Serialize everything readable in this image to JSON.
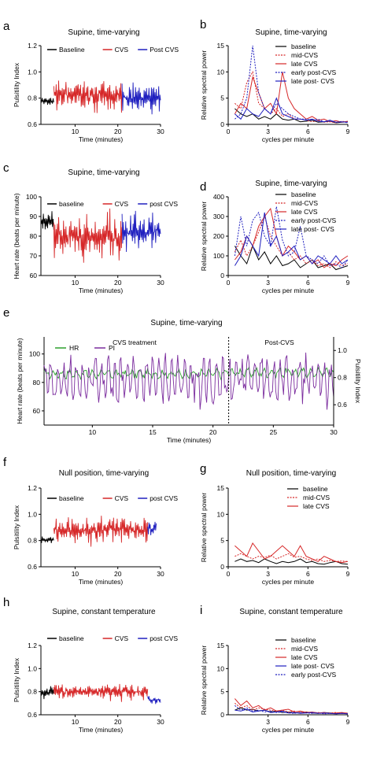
{
  "chart_data": [
    {
      "panel": "a",
      "type": "line",
      "title": "Supine, time-varying",
      "xlabel": "Time (minutes)",
      "ylabel": "Pulsitility Index",
      "xlim": [
        2,
        30
      ],
      "ylim": [
        0.6,
        1.2
      ],
      "xticks": [
        10,
        20,
        30
      ],
      "yticks": [
        0.6,
        0.8,
        1.0,
        1.2
      ],
      "legend": [
        {
          "name": "Baseline",
          "color": "#000000"
        },
        {
          "name": "CVS",
          "color": "#d62728"
        },
        {
          "name": "Post CVS",
          "color": "#1f1fbf"
        }
      ],
      "series": [
        {
          "name": "Baseline",
          "color": "#000000",
          "x": [
            2,
            3,
            4,
            5
          ],
          "base": 0.78,
          "amp": 0.04
        },
        {
          "name": "CVS",
          "color": "#d62728",
          "x": [
            5,
            21
          ],
          "base": 0.82,
          "amp": 0.1
        },
        {
          "name": "Post CVS",
          "color": "#1f1fbf",
          "x": [
            21,
            30
          ],
          "base": 0.8,
          "amp": 0.1
        }
      ]
    },
    {
      "panel": "b",
      "type": "line",
      "title": "Supine, time-varying",
      "xlabel": "cycles per minute",
      "ylabel": "Relative spectral power",
      "xlim": [
        0,
        9
      ],
      "ylim": [
        0,
        15
      ],
      "xticks": [
        0,
        3,
        6,
        9
      ],
      "yticks": [
        0,
        5,
        10,
        15
      ],
      "series": [
        {
          "name": "baseline",
          "color": "#000000",
          "dash": false,
          "y": [
            3,
            2,
            1.5,
            2,
            1,
            1.5,
            1,
            2,
            1,
            0.8,
            1,
            0.5,
            0.6,
            0.8,
            0.4,
            0.5,
            0.6,
            0.3,
            0.4,
            0.5
          ]
        },
        {
          "name": "mid-CVS",
          "color": "#d62728",
          "dash": true,
          "y": [
            4,
            3,
            8,
            10,
            4,
            3,
            2,
            3,
            1.5,
            2,
            1,
            1,
            0.8,
            0.5,
            0.7,
            0.4,
            0.5,
            0.3,
            0.6,
            0.4
          ]
        },
        {
          "name": "late  CVS",
          "color": "#d62728",
          "dash": false,
          "y": [
            2,
            4,
            3,
            9,
            6,
            3,
            4,
            2,
            10,
            5,
            3,
            2,
            1,
            1.5,
            0.8,
            1,
            0.5,
            0.7,
            0.4,
            0.6
          ]
        },
        {
          "name": "early post-CVS",
          "color": "#1f1fbf",
          "dash": true,
          "y": [
            1,
            2,
            5,
            15,
            6,
            3,
            2,
            4,
            3,
            2,
            1.5,
            1,
            1,
            0.8,
            1,
            0.5,
            0.6,
            0.4,
            0.5,
            0.3
          ]
        },
        {
          "name": "late post- CVS",
          "color": "#1f1fbf",
          "dash": false,
          "y": [
            2,
            1,
            3,
            2,
            1.5,
            3,
            2,
            5,
            2,
            1.5,
            1,
            1,
            0.8,
            1,
            0.6,
            0.5,
            0.8,
            0.4,
            0.5,
            0.4
          ]
        }
      ]
    },
    {
      "panel": "c",
      "type": "line",
      "title": "Supine, time-varying",
      "xlabel": "Time (minutes)",
      "ylabel": "Heart rate (beats per minute)",
      "xlim": [
        2,
        30
      ],
      "ylim": [
        60,
        100
      ],
      "xticks": [
        10,
        20,
        30
      ],
      "yticks": [
        60,
        70,
        80,
        90,
        100
      ],
      "legend": [
        {
          "name": "baseline",
          "color": "#000000"
        },
        {
          "name": "CVS",
          "color": "#d62728"
        },
        {
          "name": "post CVS",
          "color": "#1f1fbf"
        }
      ],
      "series": [
        {
          "name": "baseline",
          "color": "#000000",
          "x": [
            2,
            5
          ],
          "base": 87,
          "amp": 4
        },
        {
          "name": "CVS",
          "color": "#d62728",
          "x": [
            5,
            21
          ],
          "base": 80,
          "amp": 10
        },
        {
          "name": "post CVS",
          "color": "#1f1fbf",
          "x": [
            21,
            30
          ],
          "base": 82,
          "amp": 9
        }
      ]
    },
    {
      "panel": "d",
      "type": "line",
      "title": "Supine, time-varying",
      "xlabel": "cycles per minute",
      "ylabel": "Relative spectral power",
      "xlim": [
        0,
        9
      ],
      "ylim": [
        0,
        400
      ],
      "xticks": [
        0,
        3,
        6,
        9
      ],
      "yticks": [
        0,
        100,
        200,
        300,
        400
      ],
      "series": [
        {
          "name": "baseline",
          "color": "#000000",
          "dash": false,
          "y": [
            150,
            100,
            60,
            150,
            80,
            120,
            60,
            100,
            50,
            60,
            80,
            40,
            60,
            80,
            40,
            50,
            60,
            30,
            40,
            50
          ]
        },
        {
          "name": "mid-CVS",
          "color": "#d62728",
          "dash": true,
          "y": [
            120,
            180,
            100,
            150,
            220,
            300,
            200,
            150,
            100,
            120,
            80,
            100,
            60,
            80,
            50,
            60,
            40,
            70,
            50,
            60
          ]
        },
        {
          "name": "late  CVS",
          "color": "#d62728",
          "dash": false,
          "y": [
            80,
            120,
            200,
            150,
            250,
            300,
            340,
            200,
            100,
            150,
            120,
            80,
            100,
            60,
            80,
            40,
            60,
            50,
            80,
            100
          ]
        },
        {
          "name": "early post-CVS",
          "color": "#1f1fbf",
          "dash": true,
          "y": [
            100,
            300,
            150,
            280,
            320,
            200,
            150,
            350,
            180,
            100,
            120,
            250,
            100,
            80,
            60,
            100,
            50,
            60,
            40,
            80
          ]
        },
        {
          "name": "late post- CVS",
          "color": "#1f1fbf",
          "dash": false,
          "y": [
            50,
            100,
            200,
            150,
            100,
            320,
            150,
            200,
            100,
            120,
            150,
            80,
            100,
            60,
            100,
            80,
            60,
            100,
            60,
            80
          ]
        }
      ]
    },
    {
      "panel": "e",
      "type": "line",
      "title": "Supine, time-varying",
      "xlabel": "Time (minutes)",
      "ylabel": "Heart rate (beats per minute)",
      "ylabel_right": "Pulsitility Index",
      "xlim": [
        6,
        30
      ],
      "ylim": [
        50,
        112
      ],
      "ylim_right": [
        0.45,
        1.1
      ],
      "xticks": [
        10,
        15,
        20,
        25,
        30
      ],
      "yticks": [
        60,
        80,
        100
      ],
      "yticks_right": [
        0.6,
        0.8,
        1.0
      ],
      "annotations": [
        {
          "text": "CVS treatment",
          "x": 13.5
        },
        {
          "text": "Post-CVS",
          "x": 25.5
        }
      ],
      "divider_x": 21.3,
      "series": [
        {
          "name": "HR",
          "color": "#2ca02c",
          "base": 86,
          "amp": 3
        },
        {
          "name": "PI",
          "color": "#7b2c9e",
          "base": 0.78,
          "amp": 0.14
        }
      ]
    },
    {
      "panel": "f",
      "type": "line",
      "title": "Null position, time-varying",
      "xlabel": "Time (minutes)",
      "ylabel": "Pulsitility Index",
      "xlim": [
        2,
        30
      ],
      "ylim": [
        0.6,
        1.2
      ],
      "xticks": [
        10,
        20,
        30
      ],
      "yticks": [
        0.6,
        0.8,
        1.0,
        1.2
      ],
      "legend": [
        {
          "name": "baseline",
          "color": "#000000"
        },
        {
          "name": "CVS",
          "color": "#d62728"
        },
        {
          "name": "post CVS",
          "color": "#1f1fbf"
        }
      ],
      "series": [
        {
          "name": "baseline",
          "color": "#000000",
          "x": [
            2,
            5
          ],
          "base": 0.8,
          "amp": 0.03
        },
        {
          "name": "CVS",
          "color": "#d62728",
          "x": [
            5,
            27
          ],
          "base": 0.88,
          "amp": 0.08
        },
        {
          "name": "post CVS",
          "color": "#1f1fbf",
          "x": [
            27,
            29
          ],
          "base": 0.88,
          "amp": 0.07
        }
      ]
    },
    {
      "panel": "g",
      "type": "line",
      "title": "Null position, time-varying",
      "xlabel": "cycles per minute",
      "ylabel": "Relative spectral power",
      "xlim": [
        0,
        9
      ],
      "ylim": [
        0,
        15
      ],
      "xticks": [
        0,
        3,
        6,
        9
      ],
      "yticks": [
        0,
        5,
        10,
        15
      ],
      "series": [
        {
          "name": "baseline",
          "color": "#000000",
          "dash": false,
          "y": [
            1,
            1.5,
            1,
            1.2,
            0.8,
            1.5,
            1,
            0.6,
            1,
            0.8,
            1,
            1.5,
            0.8,
            1,
            0.6,
            0.5,
            0.8,
            1,
            0.6,
            0.5
          ]
        },
        {
          "name": "mid-CVS",
          "color": "#d62728",
          "dash": true,
          "y": [
            2,
            2.5,
            2,
            1.5,
            2,
            1.8,
            2.2,
            1.5,
            2,
            2.5,
            1.8,
            2,
            1.5,
            1.2,
            1.5,
            1,
            1.2,
            1,
            1.1,
            1
          ]
        },
        {
          "name": "late  CVS",
          "color": "#d62728",
          "dash": false,
          "y": [
            4,
            3,
            2,
            4.5,
            3,
            1.5,
            2,
            3,
            4,
            3,
            2,
            4,
            2,
            1.5,
            1,
            2,
            1.5,
            1,
            0.8,
            1
          ]
        }
      ]
    },
    {
      "panel": "h",
      "type": "line",
      "title": "Supine, constant temperature",
      "xlabel": "Time (minutes)",
      "ylabel": "Pulsitility Index",
      "xlim": [
        2,
        30
      ],
      "ylim": [
        0.6,
        1.2
      ],
      "xticks": [
        10,
        20,
        30
      ],
      "yticks": [
        0.6,
        0.8,
        1.0,
        1.2
      ],
      "legend": [
        {
          "name": "baseline",
          "color": "#000000"
        },
        {
          "name": "CVS",
          "color": "#d62728"
        },
        {
          "name": "post CVS",
          "color": "#1f1fbf"
        }
      ],
      "series": [
        {
          "name": "baseline",
          "color": "#000000",
          "x": [
            2,
            5
          ],
          "base": 0.8,
          "amp": 0.04
        },
        {
          "name": "CVS",
          "color": "#d62728",
          "x": [
            5,
            27
          ],
          "base": 0.8,
          "amp": 0.06
        },
        {
          "name": "post CVS",
          "color": "#1f1fbf",
          "x": [
            27,
            30
          ],
          "base": 0.73,
          "amp": 0.03
        }
      ]
    },
    {
      "panel": "i",
      "type": "line",
      "title": "Supine, constant temperature",
      "xlabel": "cycles per minute",
      "ylabel": "Relative spectral power",
      "xlim": [
        0,
        9
      ],
      "ylim": [
        0,
        15
      ],
      "xticks": [
        3,
        6,
        9
      ],
      "yticks": [
        0,
        5,
        10,
        15
      ],
      "series": [
        {
          "name": "baseline",
          "color": "#000000",
          "dash": false,
          "y": [
            1,
            1.5,
            1,
            1.2,
            0.8,
            1,
            0.6,
            0.8,
            0.5,
            0.6,
            0.4,
            0.5,
            0.6,
            0.4,
            0.3,
            0.5,
            0.4,
            0.3,
            0.4,
            0.3
          ]
        },
        {
          "name": "mid-CVS",
          "color": "#d62728",
          "dash": true,
          "y": [
            2.5,
            1.5,
            2,
            1,
            1.5,
            1.2,
            1,
            0.8,
            1,
            0.6,
            0.8,
            0.5,
            0.6,
            0.4,
            0.5,
            0.3,
            0.4,
            0.5,
            0.3,
            0.4
          ]
        },
        {
          "name": "late CVS",
          "color": "#d62728",
          "dash": false,
          "y": [
            3.5,
            2,
            3,
            1.5,
            2,
            1,
            1.5,
            0.8,
            1,
            1.2,
            0.6,
            0.8,
            0.5,
            0.6,
            0.4,
            0.5,
            0.3,
            0.4,
            0.5,
            0.3
          ]
        },
        {
          "name": "late post- CVS",
          "color": "#1f1fbf",
          "dash": false,
          "y": [
            1,
            0.8,
            1.2,
            0.6,
            0.8,
            1,
            0.5,
            0.6,
            0.8,
            0.4,
            0.5,
            0.3,
            0.4,
            0.5,
            0.3,
            0.4,
            0.3,
            0.2,
            0.3,
            0.2
          ]
        },
        {
          "name": "early post-CVS",
          "color": "#1f1fbf",
          "dash": true,
          "y": [
            2,
            1,
            1.5,
            0.8,
            1,
            0.6,
            0.8,
            0.5,
            0.6,
            0.4,
            0.3,
            0.5,
            0.4,
            0.3,
            0.4,
            0.2,
            0.3,
            0.2,
            0.3,
            0.2
          ]
        }
      ]
    }
  ]
}
